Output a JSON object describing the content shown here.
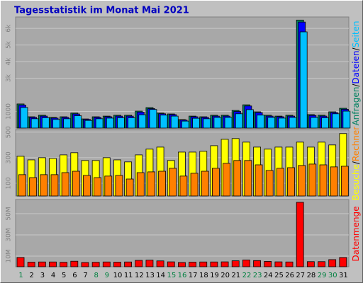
{
  "chart_data": {
    "type": "bar",
    "title": "Tagesstatistik im Monat Mai 2021",
    "categories": [
      "1",
      "2",
      "3",
      "4",
      "5",
      "6",
      "7",
      "8",
      "9",
      "10",
      "11",
      "12",
      "13",
      "14",
      "15",
      "16",
      "17",
      "18",
      "19",
      "20",
      "21",
      "22",
      "23",
      "24",
      "25",
      "26",
      "27",
      "28",
      "29",
      "30",
      "31"
    ],
    "highlighted": [
      true,
      false,
      false,
      false,
      false,
      false,
      false,
      true,
      true,
      false,
      false,
      false,
      false,
      false,
      true,
      true,
      false,
      false,
      false,
      false,
      false,
      true,
      true,
      false,
      false,
      false,
      false,
      false,
      true,
      true,
      false
    ],
    "highlight_color": "#008040",
    "separator": "/",
    "panels": [
      {
        "ylim": [
          0,
          6600
        ],
        "yticks": [
          1000,
          {
            "value": 3000,
            "label": "3k"
          },
          {
            "value": 4000,
            "label": "4k"
          },
          {
            "value": 5000,
            "label": "5k"
          },
          {
            "value": 6000,
            "label": "6k"
          }
        ],
        "series": [
          {
            "name": "Anfragen",
            "color": "#008060",
            "values": [
              1450,
              680,
              770,
              640,
              680,
              900,
              550,
              680,
              720,
              770,
              770,
              1020,
              1230,
              900,
              850,
              510,
              720,
              680,
              770,
              770,
              1060,
              1400,
              980,
              770,
              720,
              770,
              6500,
              810,
              770,
              980,
              1190
            ]
          },
          {
            "name": "Dateien",
            "color": "#0000ff",
            "values": [
              1380,
              640,
              720,
              600,
              640,
              850,
              520,
              640,
              680,
              720,
              720,
              960,
              1170,
              860,
              810,
              480,
              680,
              640,
              720,
              720,
              1000,
              1330,
              930,
              720,
              680,
              720,
              6380,
              760,
              720,
              930,
              1130
            ]
          },
          {
            "name": "Seiten",
            "color": "#00c0ff",
            "values": [
              1240,
              560,
              620,
              520,
              560,
              740,
              460,
              560,
              600,
              620,
              620,
              800,
              1120,
              780,
              720,
              420,
              590,
              560,
              640,
              640,
              860,
              1110,
              780,
              640,
              600,
              640,
              5790,
              640,
              620,
              860,
              1020
            ]
          }
        ]
      },
      {
        "ylim": [
          0,
          510
        ],
        "yticks": [
          100,
          300,
          500
        ],
        "series": [
          {
            "name": "Besuche",
            "color": "#ffff00",
            "values": [
              311,
              283,
              300,
              294,
              322,
              339,
              278,
              278,
              300,
              283,
              267,
              322,
              367,
              383,
              278,
              344,
              344,
              350,
              394,
              444,
              450,
              422,
              383,
              367,
              383,
              383,
              422,
              383,
              422,
              400,
              489
            ]
          },
          {
            "name": "Rechner",
            "color": "#ff8000",
            "values": [
              167,
              144,
              167,
              167,
              183,
              194,
              161,
              144,
              156,
              161,
              133,
              183,
              189,
              194,
              217,
              156,
              178,
              194,
              217,
              256,
              278,
              278,
              244,
              200,
              217,
              222,
              239,
              250,
              244,
              228,
              233
            ]
          }
        ]
      },
      {
        "ylim": [
          0,
          62000000
        ],
        "yticks": [
          {
            "value": 10000000,
            "label": "10M"
          },
          {
            "value": 30000000,
            "label": "30M"
          },
          {
            "value": 50000000,
            "label": "50M"
          }
        ],
        "series": [
          {
            "name": "Datenmenge",
            "color": "#ff0000",
            "values": [
              8700000,
              4300000,
              4500000,
              4500000,
              4200000,
              5200000,
              4000000,
              4200000,
              4500000,
              4300000,
              4500000,
              6000000,
              6200000,
              5500000,
              4600000,
              4000000,
              4300000,
              4500000,
              4500000,
              4600000,
              5600000,
              6400000,
              5800000,
              5000000,
              4600000,
              4500000,
              60700000,
              4800000,
              4800000,
              6700000,
              8700000
            ]
          }
        ]
      }
    ]
  }
}
